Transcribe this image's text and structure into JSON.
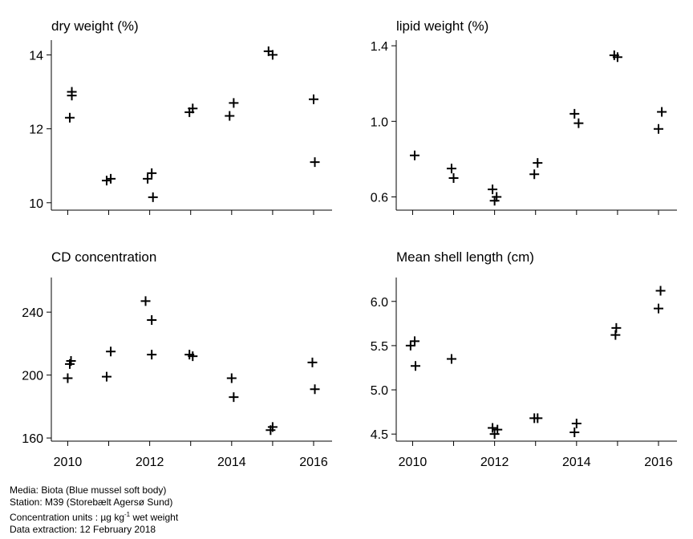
{
  "chart_data": [
    {
      "type": "scatter",
      "title": "dry weight (%)",
      "ylim": [
        9.8,
        14.4
      ],
      "yticks": [
        "10",
        "12",
        "14"
      ],
      "xticks": [
        "",
        "",
        "",
        "",
        "",
        "",
        ""
      ],
      "series": [
        {
          "points": [
            [
              2010.05,
              12.3
            ],
            [
              2010.1,
              12.9
            ],
            [
              2010.1,
              13.0
            ],
            [
              2010.95,
              10.6
            ],
            [
              2011.05,
              10.65
            ],
            [
              2011.95,
              10.65
            ],
            [
              2012.05,
              10.8
            ],
            [
              2012.08,
              10.15
            ],
            [
              2012.97,
              12.45
            ],
            [
              2013.05,
              12.55
            ],
            [
              2013.95,
              12.35
            ],
            [
              2014.05,
              12.7
            ],
            [
              2014.9,
              14.1
            ],
            [
              2015.0,
              14.0
            ],
            [
              2016.0,
              12.8
            ],
            [
              2016.03,
              11.1
            ]
          ]
        }
      ]
    },
    {
      "type": "scatter",
      "title": "lipid weight (%)",
      "ylim": [
        0.53,
        1.43
      ],
      "yticks": [
        "0.6",
        "1.0",
        "1.4"
      ],
      "xticks": [
        "",
        "",
        "",
        "",
        "",
        "",
        ""
      ],
      "series": [
        {
          "points": [
            [
              2010.05,
              0.82
            ],
            [
              2010.95,
              0.75
            ],
            [
              2011.0,
              0.7
            ],
            [
              2011.95,
              0.64
            ],
            [
              2012.0,
              0.58
            ],
            [
              2012.05,
              0.6
            ],
            [
              2012.97,
              0.72
            ],
            [
              2013.05,
              0.78
            ],
            [
              2013.95,
              1.04
            ],
            [
              2014.05,
              0.99
            ],
            [
              2014.92,
              1.35
            ],
            [
              2015.0,
              1.34
            ],
            [
              2016.0,
              0.96
            ],
            [
              2016.08,
              1.05
            ]
          ]
        }
      ]
    },
    {
      "type": "scatter",
      "title": "CD concentration",
      "ylim": [
        158,
        262
      ],
      "yticks": [
        "160",
        "200",
        "240"
      ],
      "xticks": [
        "2010",
        "",
        "2012",
        "",
        "2014",
        "",
        "2016"
      ],
      "series": [
        {
          "points": [
            [
              2010.0,
              198
            ],
            [
              2010.05,
              207
            ],
            [
              2010.08,
              209
            ],
            [
              2010.95,
              199
            ],
            [
              2011.05,
              215
            ],
            [
              2011.9,
              247
            ],
            [
              2012.05,
              213
            ],
            [
              2012.05,
              235
            ],
            [
              2012.97,
              213
            ],
            [
              2013.05,
              212
            ],
            [
              2014.0,
              198
            ],
            [
              2014.05,
              186
            ],
            [
              2014.95,
              165
            ],
            [
              2015.0,
              167
            ],
            [
              2015.97,
              208
            ],
            [
              2016.03,
              191
            ]
          ]
        }
      ]
    },
    {
      "type": "scatter",
      "title": "Mean shell length (cm)",
      "ylim": [
        4.42,
        6.27
      ],
      "yticks": [
        "4.5",
        "5.0",
        "5.5",
        "6.0"
      ],
      "xticks": [
        "2010",
        "",
        "2012",
        "",
        "2014",
        "",
        "2016"
      ],
      "series": [
        {
          "points": [
            [
              2009.95,
              5.5
            ],
            [
              2010.05,
              5.55
            ],
            [
              2010.07,
              5.27
            ],
            [
              2010.95,
              5.35
            ],
            [
              2011.95,
              4.57
            ],
            [
              2012.0,
              4.5
            ],
            [
              2012.07,
              4.55
            ],
            [
              2012.97,
              4.68
            ],
            [
              2013.05,
              4.68
            ],
            [
              2013.95,
              4.52
            ],
            [
              2014.0,
              4.62
            ],
            [
              2014.95,
              5.62
            ],
            [
              2014.97,
              5.7
            ],
            [
              2016.0,
              5.92
            ],
            [
              2016.05,
              6.12
            ]
          ]
        }
      ]
    }
  ],
  "footer": {
    "media": "Media: Biota (Blue mussel soft body)",
    "station": "Station: M39 (Storebælt Agersø Sund)",
    "units_prefix": "Concentration units : µg kg",
    "units_sup": "-1",
    "units_suffix": " wet weight",
    "extraction": "Data extraction: 12 February 2018"
  }
}
